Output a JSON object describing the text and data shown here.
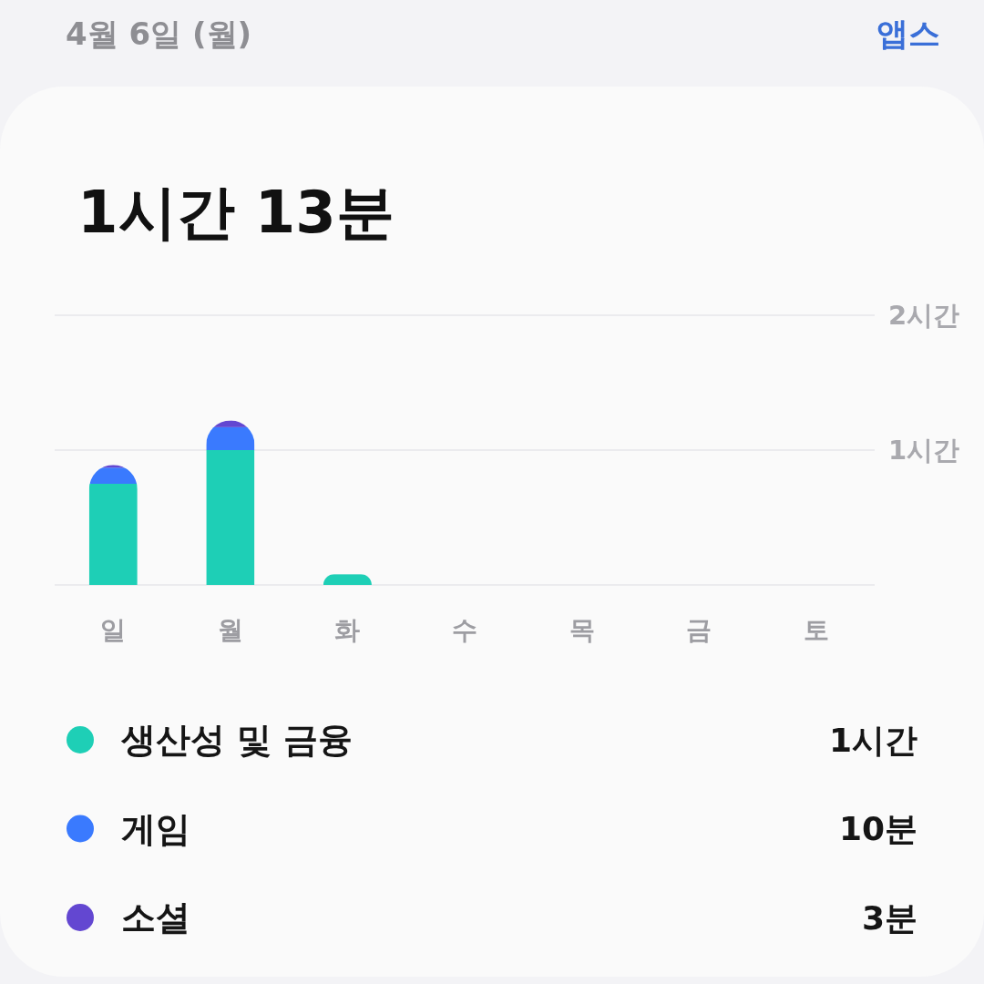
{
  "chart_data": {
    "type": "bar",
    "stacked": true,
    "title": "4월 6일 (월)",
    "subtitle": "1시간 13분",
    "categories": [
      "일",
      "월",
      "화",
      "수",
      "목",
      "금",
      "토"
    ],
    "series": [
      {
        "name": "생산성 및 금융",
        "color": "#1ecfb6",
        "values": [
          0.75,
          1,
          0.08,
          null,
          null,
          null,
          null
        ]
      },
      {
        "name": "게임",
        "color": "#3a7afe",
        "values": [
          0.12,
          0.17,
          0,
          null,
          null,
          null,
          null
        ]
      },
      {
        "name": "소셜",
        "color": "#6347d1",
        "values": [
          0.02,
          0.05,
          0,
          null,
          null,
          null,
          null
        ]
      }
    ],
    "ylim": [
      0,
      2
    ],
    "yticks": [
      {
        "value": 0,
        "label": null
      },
      {
        "value": 1,
        "label": "1시간"
      },
      {
        "value": 2,
        "label": "2시간"
      }
    ],
    "grid": "y",
    "legend": "bottom",
    "annotations": [
      "앱스",
      "1시간",
      "10분",
      "3분"
    ]
  }
}
